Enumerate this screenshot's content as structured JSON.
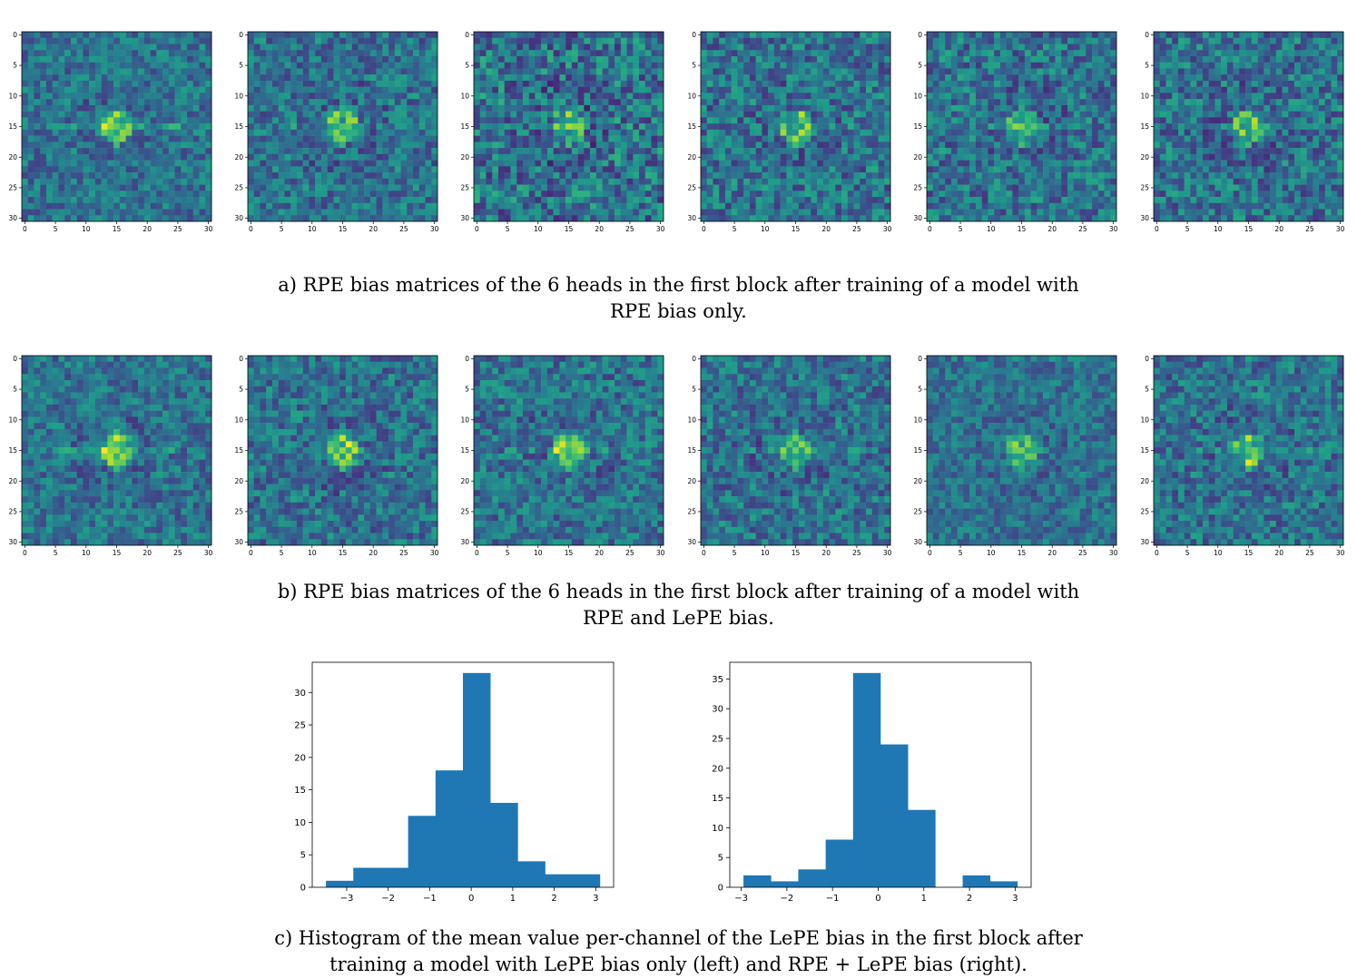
{
  "figure": {
    "heatmap_ticks": [
      "0",
      "5",
      "10",
      "15",
      "20",
      "25",
      "30"
    ],
    "captions": {
      "a": [
        "a) RPE bias matrices of the 6 heads in the first block after training of a model with",
        "RPE bias only."
      ],
      "b": [
        "b) RPE bias matrices of the 6 heads in the first block after training of a model with",
        "RPE and LePE bias."
      ],
      "c": [
        "c) Histogram of the mean value per-channel of the LePE bias in the first block after",
        "training a model with LePE bias only (left) and RPE + LePE bias (right)."
      ]
    },
    "palette": {
      "bar_color": "#1f77b4",
      "colormap": "viridis"
    }
  },
  "chart_data": [
    {
      "type": "heatmap",
      "panel": "a",
      "head": 1,
      "grid": [
        31,
        31
      ],
      "xticks": [
        0,
        5,
        10,
        15,
        20,
        25,
        30
      ],
      "yticks": [
        0,
        5,
        10,
        15,
        20,
        25,
        30
      ],
      "pattern": "bright ring at center (15,15) with bright horizontal streak through row 15",
      "center_intensity": 0.95,
      "cross_intensity": 0.35,
      "noise": 0.18,
      "seed": 11
    },
    {
      "type": "heatmap",
      "panel": "a",
      "head": 2,
      "grid": [
        31,
        31
      ],
      "xticks": [
        0,
        5,
        10,
        15,
        20,
        25,
        30
      ],
      "yticks": [
        0,
        5,
        10,
        15,
        20,
        25,
        30
      ],
      "pattern": "bright ring at center (15,15)",
      "center_intensity": 0.8,
      "cross_intensity": 0.15,
      "noise": 0.2,
      "seed": 23
    },
    {
      "type": "heatmap",
      "panel": "a",
      "head": 3,
      "grid": [
        31,
        31
      ],
      "xticks": [
        0,
        5,
        10,
        15,
        20,
        25,
        30
      ],
      "yticks": [
        0,
        5,
        10,
        15,
        20,
        25,
        30
      ],
      "pattern": "few bright pixels near center, noisy",
      "center_intensity": 0.7,
      "cross_intensity": 0.05,
      "noise": 0.26,
      "seed": 37
    },
    {
      "type": "heatmap",
      "panel": "a",
      "head": 4,
      "grid": [
        31,
        31
      ],
      "xticks": [
        0,
        5,
        10,
        15,
        20,
        25,
        30
      ],
      "yticks": [
        0,
        5,
        10,
        15,
        20,
        25,
        30
      ],
      "pattern": "bright ring slightly left of center",
      "center_intensity": 0.8,
      "cross_intensity": 0.1,
      "noise": 0.22,
      "seed": 41
    },
    {
      "type": "heatmap",
      "panel": "a",
      "head": 5,
      "grid": [
        31,
        31
      ],
      "xticks": [
        0,
        5,
        10,
        15,
        20,
        25,
        30
      ],
      "yticks": [
        0,
        5,
        10,
        15,
        20,
        25,
        30
      ],
      "pattern": "bright horizontal band at rows 13-16, bright background",
      "center_intensity": 0.75,
      "cross_intensity": 0.25,
      "noise": 0.22,
      "seed": 53
    },
    {
      "type": "heatmap",
      "panel": "a",
      "head": 6,
      "grid": [
        31,
        31
      ],
      "xticks": [
        0,
        5,
        10,
        15,
        20,
        25,
        30
      ],
      "yticks": [
        0,
        5,
        10,
        15,
        20,
        25,
        30
      ],
      "pattern": "small bright ring at center with faint horizontal streak",
      "center_intensity": 0.75,
      "cross_intensity": 0.2,
      "noise": 0.22,
      "seed": 67
    },
    {
      "type": "heatmap",
      "panel": "b",
      "head": 1,
      "grid": [
        31,
        31
      ],
      "xticks": [
        0,
        5,
        10,
        15,
        20,
        25,
        30
      ],
      "yticks": [
        0,
        5,
        10,
        15,
        20,
        25,
        30
      ],
      "pattern": "bright filled blob at center with horizontal streak",
      "center_intensity": 0.95,
      "cross_intensity": 0.3,
      "noise": 0.18,
      "seed": 71
    },
    {
      "type": "heatmap",
      "panel": "b",
      "head": 2,
      "grid": [
        31,
        31
      ],
      "xticks": [
        0,
        5,
        10,
        15,
        20,
        25,
        30
      ],
      "yticks": [
        0,
        5,
        10,
        15,
        20,
        25,
        30
      ],
      "pattern": "bright diamond ring at center, dark surroundings",
      "center_intensity": 0.9,
      "cross_intensity": 0.15,
      "noise": 0.2,
      "seed": 83
    },
    {
      "type": "heatmap",
      "panel": "b",
      "head": 3,
      "grid": [
        31,
        31
      ],
      "xticks": [
        0,
        5,
        10,
        15,
        20,
        25,
        30
      ],
      "yticks": [
        0,
        5,
        10,
        15,
        20,
        25,
        30
      ],
      "pattern": "bright blob at center with vertical and horizontal streaks",
      "center_intensity": 0.9,
      "cross_intensity": 0.25,
      "noise": 0.2,
      "seed": 97
    },
    {
      "type": "heatmap",
      "panel": "b",
      "head": 4,
      "grid": [
        31,
        31
      ],
      "xticks": [
        0,
        5,
        10,
        15,
        20,
        25,
        30
      ],
      "yticks": [
        0,
        5,
        10,
        15,
        20,
        25,
        30
      ],
      "pattern": "soft bright blob at center, greenish background",
      "center_intensity": 0.75,
      "cross_intensity": 0.2,
      "noise": 0.2,
      "seed": 101
    },
    {
      "type": "heatmap",
      "panel": "b",
      "head": 5,
      "grid": [
        31,
        31
      ],
      "xticks": [
        0,
        5,
        10,
        15,
        20,
        25,
        30
      ],
      "yticks": [
        0,
        5,
        10,
        15,
        20,
        25,
        30
      ],
      "pattern": "small diamond at center, dark background",
      "center_intensity": 0.8,
      "cross_intensity": 0.05,
      "noise": 0.16,
      "seed": 113
    },
    {
      "type": "heatmap",
      "panel": "b",
      "head": 6,
      "grid": [
        31,
        31
      ],
      "xticks": [
        0,
        5,
        10,
        15,
        20,
        25,
        30
      ],
      "yticks": [
        0,
        5,
        10,
        15,
        20,
        25,
        30
      ],
      "pattern": "bright blob slightly right of center with horizontal streak",
      "center_intensity": 0.85,
      "cross_intensity": 0.25,
      "noise": 0.2,
      "seed": 127
    },
    {
      "type": "bar",
      "panel": "c-left",
      "bins": [
        [
          -3.5,
          -2.84
        ],
        [
          -2.84,
          -2.18
        ],
        [
          -2.18,
          -1.52
        ],
        [
          -1.52,
          -0.86
        ],
        [
          -0.86,
          -0.2
        ],
        [
          -0.2,
          0.46
        ],
        [
          0.46,
          1.12
        ],
        [
          1.12,
          1.78
        ],
        [
          1.78,
          2.44
        ],
        [
          2.44,
          3.1
        ]
      ],
      "values": [
        1,
        3,
        3,
        11,
        18,
        33,
        13,
        4,
        2,
        2
      ],
      "xticks": [
        -3,
        -2,
        -1,
        0,
        1,
        2,
        3
      ],
      "yticks": [
        0,
        5,
        10,
        15,
        20,
        25,
        30
      ],
      "xlim": [
        -3.83,
        3.43
      ],
      "ylim": [
        0,
        34.65
      ]
    },
    {
      "type": "bar",
      "panel": "c-right",
      "bins": [
        [
          -2.95,
          -2.35
        ],
        [
          -2.35,
          -1.75
        ],
        [
          -1.75,
          -1.15
        ],
        [
          -1.15,
          -0.55
        ],
        [
          -0.55,
          0.05
        ],
        [
          0.05,
          0.65
        ],
        [
          0.65,
          1.25
        ],
        [
          1.25,
          1.85
        ],
        [
          1.85,
          2.45
        ],
        [
          2.45,
          3.05
        ]
      ],
      "values": [
        2,
        1,
        3,
        8,
        36,
        24,
        13,
        0,
        2,
        1
      ],
      "xticks": [
        -3,
        -2,
        -1,
        0,
        1,
        2,
        3
      ],
      "yticks": [
        0,
        5,
        10,
        15,
        20,
        25,
        30,
        35
      ],
      "xlim": [
        -3.25,
        3.35
      ],
      "ylim": [
        0,
        37.8
      ]
    }
  ]
}
